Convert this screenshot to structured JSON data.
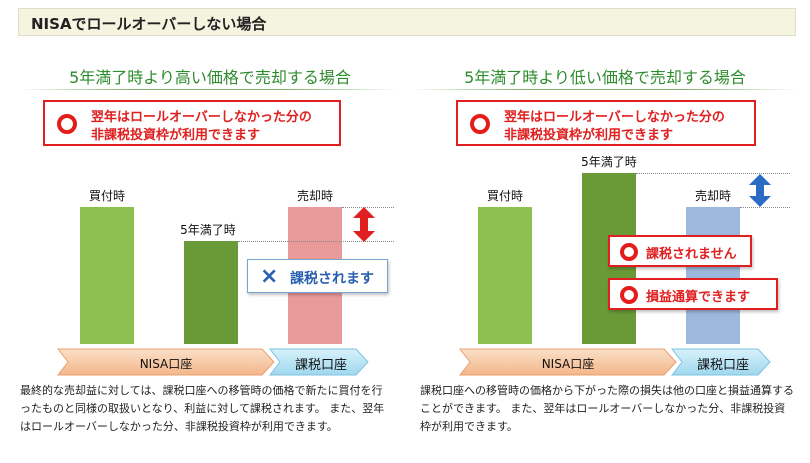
{
  "header": {
    "title": "NISAでロールオーバーしない場合"
  },
  "left": {
    "title": "5年満了時より高い価格で売却する場合",
    "callout": {
      "line1": "翌年はロールオーバーしなかった分の",
      "line2": "非課税投資枠が利用できます"
    },
    "bar_labels": {
      "buy": "買付時",
      "maturity": "5年満了時",
      "sell": "売却時"
    },
    "tax_box": {
      "icon": "×",
      "text": "課税されます"
    },
    "accounts": {
      "nisa": "NISA口座",
      "taxable": "課税口座"
    },
    "description": "最終的な売却益に対しては、課税口座への移管時の価格で新たに買付を行ったものと同様の取扱いとなり、利益に対して課税されます。 また、翌年はロールオーバーしなかった分、非課税投資枠が利用できます。",
    "colors": {
      "bar_light": "#8cc152",
      "bar_dark": "#6a9a38",
      "bar_sell": "#e89a9a",
      "arrow": "#e02020"
    }
  },
  "right": {
    "title": "5年満了時より低い価格で売却する場合",
    "callout": {
      "line1": "翌年はロールオーバーしなかった分の",
      "line2": "非課税投資枠が利用できます"
    },
    "bar_labels": {
      "buy": "買付時",
      "maturity": "5年満了時",
      "sell": "売却時"
    },
    "no_tax_box": {
      "text": "課税されません"
    },
    "loss_box": {
      "text": "損益通算できます"
    },
    "accounts": {
      "nisa": "NISA口座",
      "taxable": "課税口座"
    },
    "description": "課税口座への移管時の価格から下がった際の損失は他の口座と損益通算することができます。 また、翌年はロールオーバーしなかった分、非課税投資枠が利用できます。",
    "colors": {
      "bar_light": "#8cc152",
      "bar_dark": "#6a9a38",
      "bar_sell": "#9db8dd",
      "arrow": "#2a6cc4"
    }
  }
}
